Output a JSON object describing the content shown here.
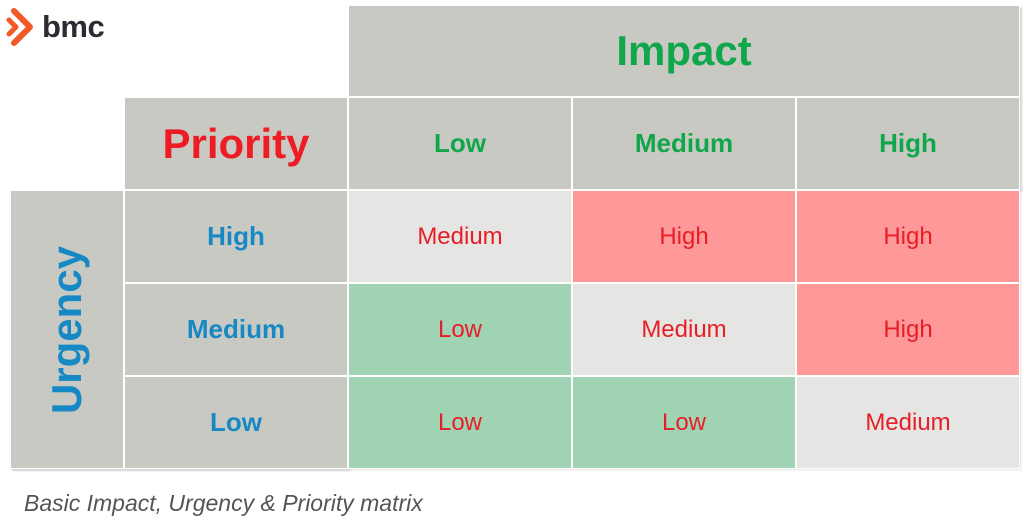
{
  "logo": {
    "text": "bmc",
    "accent": "#f15a24"
  },
  "matrix": {
    "impact_title": "Impact",
    "priority_title": "Priority",
    "urgency_title": "Urgency",
    "impact_levels": [
      "Low",
      "Medium",
      "High"
    ],
    "urgency_levels": [
      "High",
      "Medium",
      "Low"
    ],
    "rows": [
      [
        "Medium",
        "High",
        "High"
      ],
      [
        "Low",
        "Medium",
        "High"
      ],
      [
        "Low",
        "Low",
        "Medium"
      ]
    ]
  },
  "colors": {
    "header_bg": "#c9c9c4",
    "impact_text": "#10a64a",
    "priority_text": "#ee1c25",
    "urgency_text": "#1689c4",
    "low_cell": "#9fd3b4",
    "medium_cell": "#e5e5e3",
    "high_cell": "#ff9999"
  },
  "caption": "Basic Impact, Urgency & Priority matrix"
}
